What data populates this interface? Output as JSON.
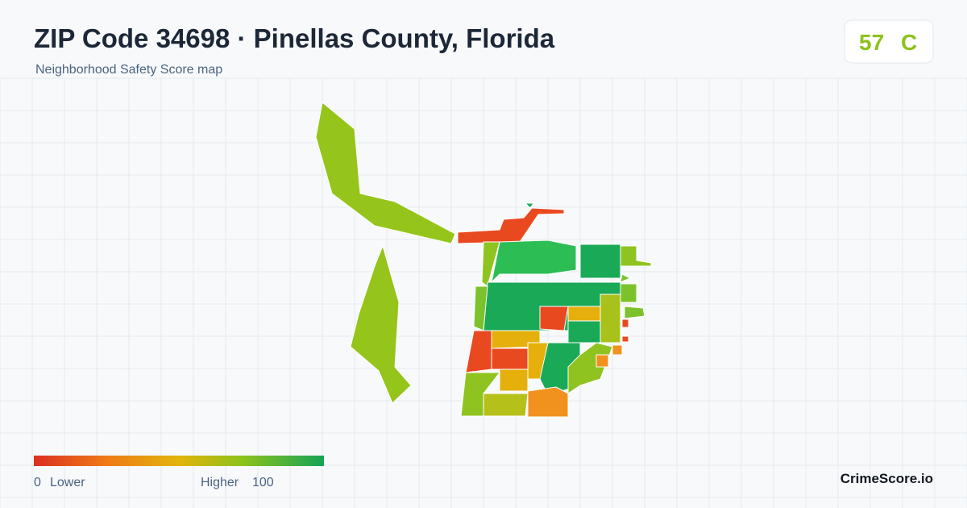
{
  "header": {
    "title": "ZIP Code 34698 · Pinellas County, Florida",
    "subtitle": "Neighborhood Safety Score map"
  },
  "score": {
    "value": 57,
    "grade": "C"
  },
  "legend": {
    "min": 0,
    "min_label": "Lower",
    "max_label": "Higher",
    "max": 100
  },
  "brand": "CrimeScore.io"
}
